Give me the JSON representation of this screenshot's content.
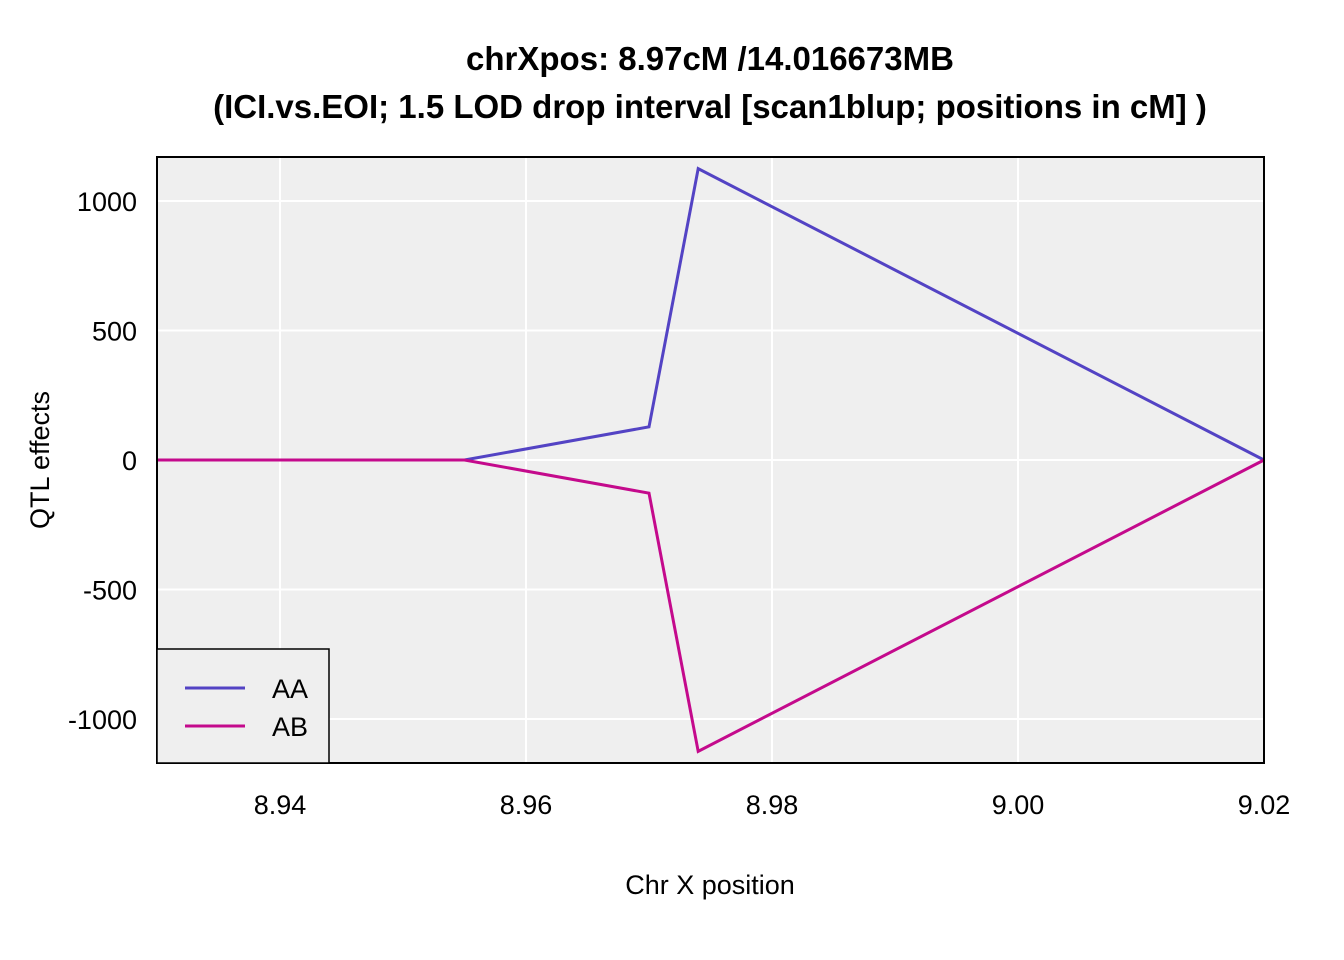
{
  "chart_data": {
    "type": "line",
    "title": "chrXpos: 8.97cM /14.016673MB",
    "subtitle": "(ICI.vs.EOI; 1.5 LOD drop interval [scan1blup; positions in cM] )",
    "xlabel": "Chr X position",
    "ylabel": "QTL effects",
    "xlim": [
      8.93,
      9.02
    ],
    "ylim": [
      -1170,
      1170
    ],
    "xticks": [
      8.94,
      8.96,
      8.98,
      9.0,
      9.02
    ],
    "xtick_labels": [
      "8.94",
      "8.96",
      "8.98",
      "9.00",
      "9.02"
    ],
    "yticks": [
      1000,
      500,
      0,
      -500,
      -1000
    ],
    "ytick_labels": [
      "1000",
      "500",
      "0",
      "-500",
      "-1000"
    ],
    "grid": true,
    "background": "#efefef",
    "legend_position": "bottom-left",
    "series": [
      {
        "name": "AA",
        "color": "#5343c4",
        "x": [
          8.93,
          8.955,
          8.97,
          8.974,
          9.02
        ],
        "y": [
          0,
          0,
          128,
          1125,
          0
        ]
      },
      {
        "name": "AB",
        "color": "#c40a8c",
        "x": [
          8.93,
          8.955,
          8.97,
          8.974,
          9.02
        ],
        "y": [
          0,
          0,
          -128,
          -1125,
          0
        ]
      }
    ]
  }
}
